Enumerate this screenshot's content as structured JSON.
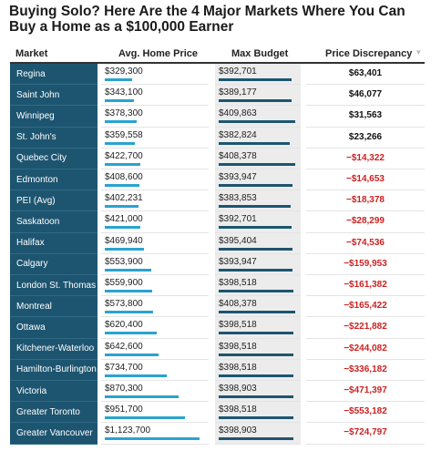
{
  "title": "Buying Solo? Here Are the 4 Major Markets Where You Can Buy a Home as a $100,000 Earner",
  "columns": {
    "market": "Market",
    "avg": "Avg. Home Price",
    "max": "Max Budget",
    "disc": "Price Discrepancy"
  },
  "colors": {
    "market_bg": "#1d5570",
    "avg_bar": "#2aa3cf",
    "max_bar": "#1d5570",
    "negative": "#cc2222"
  },
  "chart_data": {
    "type": "table",
    "rows": [
      {
        "market": "Regina",
        "avg": 329300,
        "avg_label": "$329,300",
        "max": 392701,
        "max_label": "$392,701",
        "disc": "$63,401",
        "negative": false
      },
      {
        "market": "Saint John",
        "avg": 343100,
        "avg_label": "$343,100",
        "max": 389177,
        "max_label": "$389,177",
        "disc": "$46,077",
        "negative": false
      },
      {
        "market": "Winnipeg",
        "avg": 378300,
        "avg_label": "$378,300",
        "max": 409863,
        "max_label": "$409,863",
        "disc": "$31,563",
        "negative": false
      },
      {
        "market": "St. John's",
        "avg": 359558,
        "avg_label": "$359,558",
        "max": 382824,
        "max_label": "$382,824",
        "disc": "$23,266",
        "negative": false
      },
      {
        "market": "Quebec City",
        "avg": 422700,
        "avg_label": "$422,700",
        "max": 408378,
        "max_label": "$408,378",
        "disc": "−$14,322",
        "negative": true
      },
      {
        "market": "Edmonton",
        "avg": 408600,
        "avg_label": "$408,600",
        "max": 393947,
        "max_label": "$393,947",
        "disc": "−$14,653",
        "negative": true
      },
      {
        "market": "PEI (Avg)",
        "avg": 402231,
        "avg_label": "$402,231",
        "max": 383853,
        "max_label": "$383,853",
        "disc": "−$18,378",
        "negative": true
      },
      {
        "market": "Saskatoon",
        "avg": 421000,
        "avg_label": "$421,000",
        "max": 392701,
        "max_label": "$392,701",
        "disc": "−$28,299",
        "negative": true
      },
      {
        "market": "Halifax",
        "avg": 469940,
        "avg_label": "$469,940",
        "max": 395404,
        "max_label": "$395,404",
        "disc": "−$74,536",
        "negative": true
      },
      {
        "market": "Calgary",
        "avg": 553900,
        "avg_label": "$553,900",
        "max": 393947,
        "max_label": "$393,947",
        "disc": "−$159,953",
        "negative": true
      },
      {
        "market": "London St. Thomas",
        "avg": 559900,
        "avg_label": "$559,900",
        "max": 398518,
        "max_label": "$398,518",
        "disc": "−$161,382",
        "negative": true
      },
      {
        "market": "Montreal",
        "avg": 573800,
        "avg_label": "$573,800",
        "max": 408378,
        "max_label": "$408,378",
        "disc": "−$165,422",
        "negative": true
      },
      {
        "market": "Ottawa",
        "avg": 620400,
        "avg_label": "$620,400",
        "max": 398518,
        "max_label": "$398,518",
        "disc": "−$221,882",
        "negative": true
      },
      {
        "market": "Kitchener-Waterloo",
        "avg": 642600,
        "avg_label": "$642,600",
        "max": 398518,
        "max_label": "$398,518",
        "disc": "−$244,082",
        "negative": true
      },
      {
        "market": "Hamilton-Burlington",
        "avg": 734700,
        "avg_label": "$734,700",
        "max": 398518,
        "max_label": "$398,518",
        "disc": "−$336,182",
        "negative": true
      },
      {
        "market": "Victoria",
        "avg": 870300,
        "avg_label": "$870,300",
        "max": 398903,
        "max_label": "$398,903",
        "disc": "−$471,397",
        "negative": true
      },
      {
        "market": "Greater Toronto",
        "avg": 951700,
        "avg_label": "$951,700",
        "max": 398518,
        "max_label": "$398,518",
        "disc": "−$553,182",
        "negative": true
      },
      {
        "market": "Greater Vancouver",
        "avg": 1123700,
        "avg_label": "$1,123,700",
        "max": 398903,
        "max_label": "$398,903",
        "disc": "−$724,797",
        "negative": true
      }
    ]
  }
}
